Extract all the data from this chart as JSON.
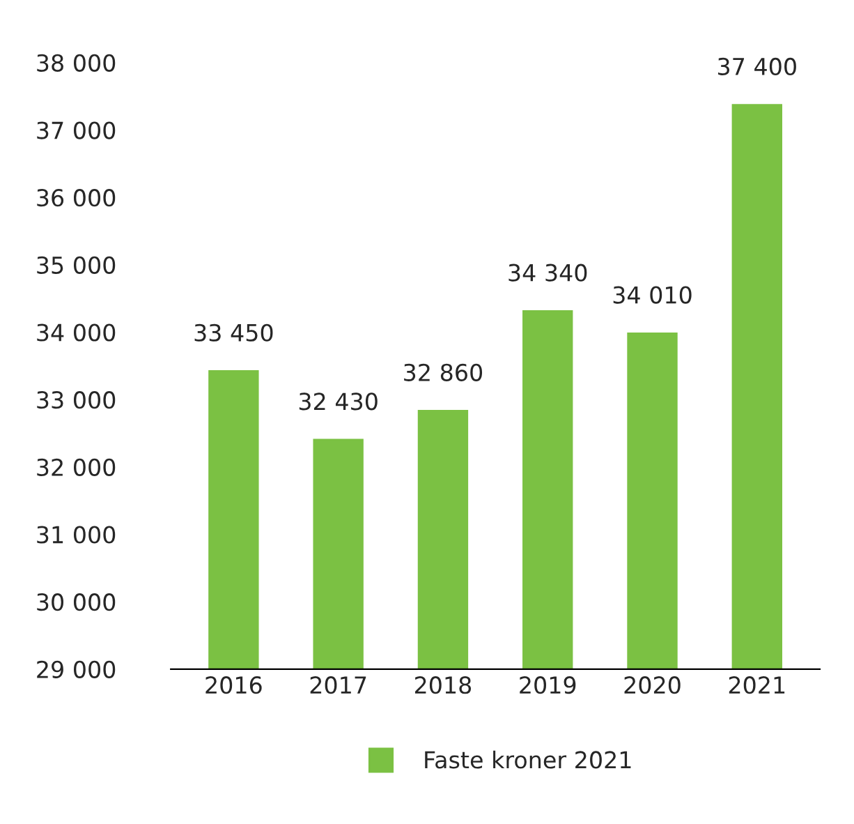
{
  "chart_data": {
    "type": "bar",
    "categories": [
      "2016",
      "2017",
      "2018",
      "2019",
      "2020",
      "2021"
    ],
    "series": [
      {
        "name": "Faste kroner 2021",
        "color": "#7bc143",
        "values": [
          33450,
          32430,
          32860,
          34340,
          34010,
          37400
        ],
        "value_labels": [
          "33 450",
          "32 430",
          "32 860",
          "34 340",
          "34 010",
          "37 400"
        ]
      }
    ],
    "ylim": [
      29000,
      38000
    ],
    "yticks": [
      {
        "value": 29000,
        "label": "29 000"
      },
      {
        "value": 30000,
        "label": "30 000"
      },
      {
        "value": 31000,
        "label": "31 000"
      },
      {
        "value": 32000,
        "label": "32 000"
      },
      {
        "value": 33000,
        "label": "33 000"
      },
      {
        "value": 34000,
        "label": "34 000"
      },
      {
        "value": 35000,
        "label": "35 000"
      },
      {
        "value": 36000,
        "label": "36 000"
      },
      {
        "value": 37000,
        "label": "37 000"
      },
      {
        "value": 38000,
        "label": "38 000"
      }
    ],
    "grid": false,
    "legend": "bottom"
  }
}
